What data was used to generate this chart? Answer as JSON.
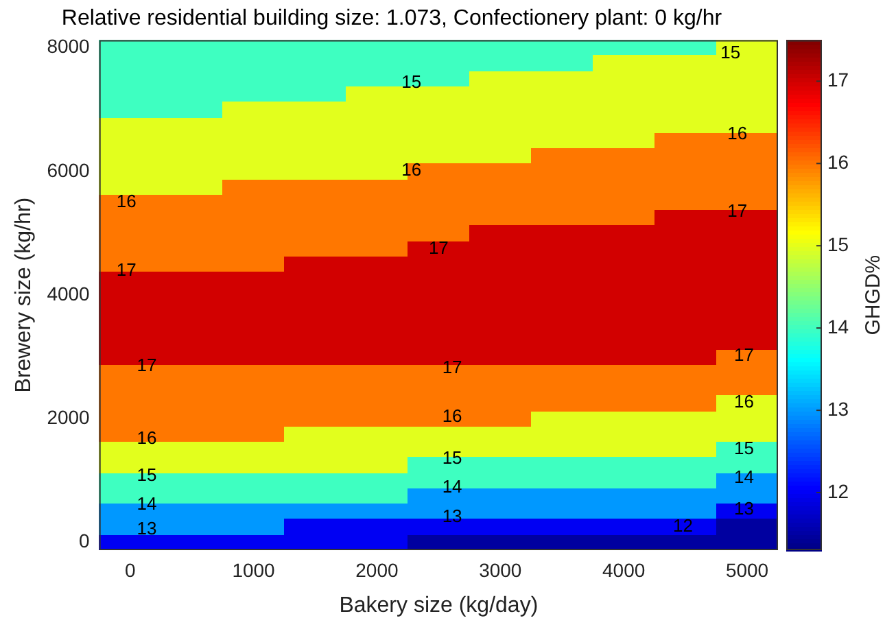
{
  "chart_data": {
    "type": "heatmap",
    "title": "Relative residential building size: 1.073, Confectionery plant: 0 kg/hr",
    "xlabel": "Bakery size (kg/day)",
    "ylabel": "Brewery size (kg/hr)",
    "clabel": "GHGD%",
    "categories": [
      "0",
      null,
      "1000",
      null,
      "2000",
      null,
      "3000",
      null,
      "4000",
      null,
      "5000"
    ],
    "y_categories": [
      "8000",
      null,
      null,
      null,
      null,
      null,
      null,
      null,
      "6000",
      null,
      null,
      null,
      null,
      null,
      null,
      null,
      "4000",
      null,
      null,
      null,
      null,
      null,
      null,
      null,
      "2000",
      null,
      null,
      null,
      null,
      null,
      null,
      null,
      "0"
    ],
    "cells": [
      [
        14,
        14,
        14,
        14,
        14,
        14,
        14,
        14,
        14,
        14,
        15
      ],
      [
        14,
        14,
        14,
        14,
        14,
        14,
        14,
        14,
        15,
        15,
        15
      ],
      [
        14,
        14,
        14,
        14,
        14,
        14,
        15,
        15,
        15,
        15,
        15
      ],
      [
        14,
        14,
        14,
        14,
        15,
        15,
        15,
        15,
        15,
        15,
        15
      ],
      [
        14,
        14,
        15,
        15,
        15,
        15,
        15,
        15,
        15,
        15,
        15
      ],
      [
        15,
        15,
        15,
        15,
        15,
        15,
        15,
        15,
        15,
        15,
        15
      ],
      [
        15,
        15,
        15,
        15,
        15,
        15,
        15,
        15,
        15,
        16,
        16
      ],
      [
        15,
        15,
        15,
        15,
        15,
        15,
        15,
        16,
        16,
        16,
        16
      ],
      [
        15,
        15,
        15,
        15,
        15,
        16,
        16,
        16,
        16,
        16,
        16
      ],
      [
        15,
        15,
        16,
        16,
        16,
        16,
        16,
        16,
        16,
        16,
        16
      ],
      [
        16,
        16,
        16,
        16,
        16,
        16,
        16,
        16,
        16,
        16,
        16
      ],
      [
        16,
        16,
        16,
        16,
        16,
        16,
        16,
        16,
        16,
        17,
        17
      ],
      [
        16,
        16,
        16,
        16,
        16,
        16,
        17,
        17,
        17,
        17,
        17
      ],
      [
        16,
        16,
        16,
        16,
        16,
        17,
        17,
        17,
        17,
        17,
        17
      ],
      [
        16,
        16,
        16,
        17,
        17,
        17,
        17,
        17,
        17,
        17,
        17
      ],
      [
        17,
        17,
        17,
        17,
        17,
        17,
        17,
        17,
        17,
        17,
        17
      ],
      [
        17,
        17,
        17,
        17,
        17,
        17,
        17,
        17,
        17,
        17,
        17
      ],
      [
        17,
        17,
        17,
        17,
        17,
        17,
        17,
        17,
        17,
        17,
        17
      ],
      [
        17,
        17,
        17,
        17,
        17,
        17,
        17,
        17,
        17,
        17,
        17
      ],
      [
        17,
        17,
        17,
        17,
        17,
        17,
        17,
        17,
        17,
        17,
        17
      ],
      [
        17,
        17,
        17,
        17,
        17,
        17,
        17,
        17,
        17,
        17,
        16
      ],
      [
        16,
        16,
        16,
        16,
        16,
        16,
        16,
        16,
        16,
        16,
        16
      ],
      [
        16,
        16,
        16,
        16,
        16,
        16,
        16,
        16,
        16,
        16,
        16
      ],
      [
        16,
        16,
        16,
        16,
        16,
        16,
        16,
        16,
        16,
        16,
        15
      ],
      [
        16,
        16,
        16,
        16,
        16,
        16,
        16,
        15,
        15,
        15,
        15
      ],
      [
        16,
        16,
        16,
        15,
        15,
        15,
        15,
        15,
        15,
        15,
        15
      ],
      [
        15,
        15,
        15,
        15,
        15,
        15,
        15,
        15,
        15,
        15,
        14
      ],
      [
        15,
        15,
        15,
        15,
        15,
        14,
        14,
        14,
        14,
        14,
        14
      ],
      [
        14,
        14,
        14,
        14,
        14,
        14,
        14,
        14,
        14,
        14,
        13
      ],
      [
        14,
        14,
        14,
        14,
        14,
        13,
        13,
        13,
        13,
        13,
        13
      ],
      [
        13,
        13,
        13,
        13,
        13,
        13,
        13,
        13,
        13,
        13,
        12
      ],
      [
        13,
        13,
        13,
        12,
        12,
        12,
        12,
        12,
        12,
        12,
        11.5
      ],
      [
        12,
        12,
        12,
        12,
        12,
        11.5,
        11.5,
        11.5,
        11.5,
        11.5,
        11.5
      ]
    ],
    "clim": [
      11.3,
      17.5
    ],
    "cticks": [
      12,
      13,
      14,
      15,
      16,
      17
    ],
    "annotations": [
      "15",
      "15",
      "16",
      "16",
      "16",
      "17",
      "17",
      "17",
      "17",
      "17",
      "17",
      "16",
      "16",
      "16",
      "15",
      "15",
      "15",
      "14",
      "14",
      "14",
      "13",
      "13",
      "13",
      "12"
    ]
  }
}
